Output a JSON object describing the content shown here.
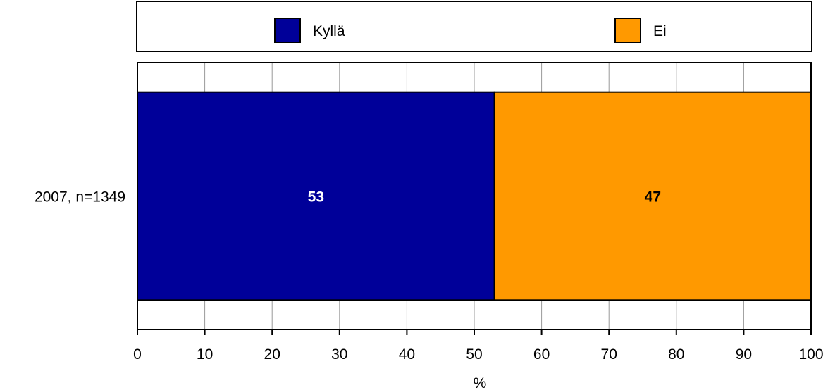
{
  "chart_data": {
    "type": "bar",
    "orientation": "horizontal",
    "stacked": true,
    "categories": [
      "2007, n=1349"
    ],
    "series": [
      {
        "name": "Kyllä",
        "values": [
          53
        ],
        "color": "#000099",
        "label_color": "#ffffff"
      },
      {
        "name": "Ei",
        "values": [
          47
        ],
        "color": "#ff9900",
        "label_color": "#000000"
      }
    ],
    "xlabel": "%",
    "xlim": [
      0,
      100
    ],
    "xticks": [
      0,
      10,
      20,
      30,
      40,
      50,
      60,
      70,
      80,
      90,
      100
    ],
    "grid": true,
    "legend_position": "top"
  }
}
